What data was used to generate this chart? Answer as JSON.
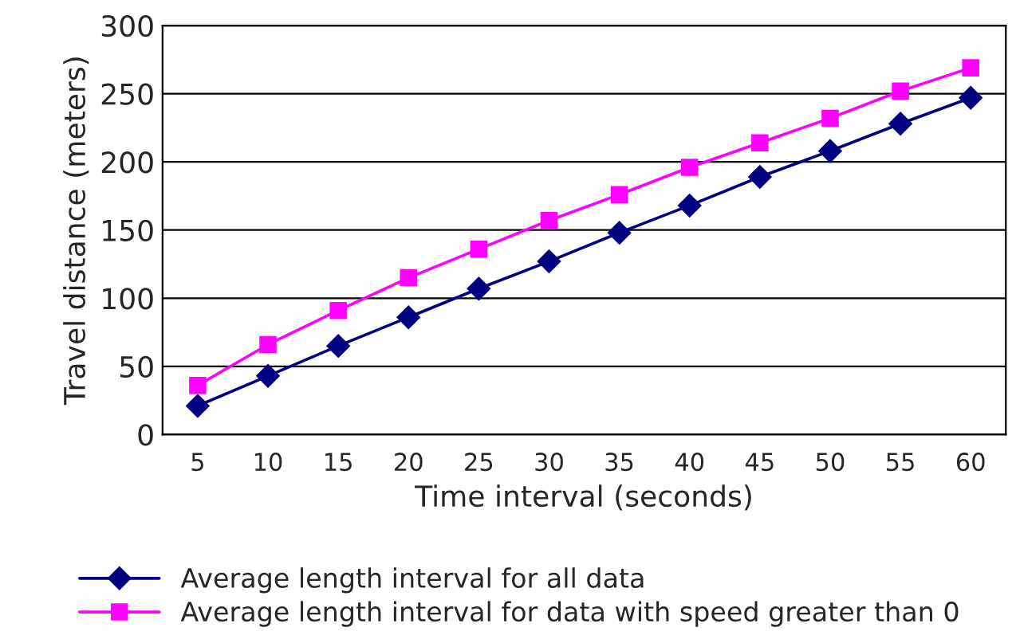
{
  "chart_data": {
    "type": "line",
    "xlabel": "Time interval (seconds)",
    "ylabel": "Travel distance (meters)",
    "categories": [
      "5",
      "10",
      "15",
      "20",
      "25",
      "30",
      "35",
      "40",
      "45",
      "50",
      "55",
      "60"
    ],
    "series": [
      {
        "name": "Average length interval for all data",
        "color": "#000080",
        "marker": "diamond",
        "values": [
          21,
          43,
          65,
          86,
          107,
          127,
          148,
          168,
          189,
          208,
          228,
          247
        ]
      },
      {
        "name": "Average length interval for data with speed greater than 0",
        "color": "#ff00ff",
        "marker": "square",
        "values": [
          36,
          66,
          91,
          115,
          136,
          157,
          176,
          196,
          214,
          232,
          252,
          269
        ]
      }
    ],
    "ylim": [
      0,
      300
    ],
    "yticks": [
      0,
      50,
      100,
      150,
      200,
      250,
      300
    ],
    "grid": "y",
    "legend": "bottom",
    "line_style": "solid"
  }
}
